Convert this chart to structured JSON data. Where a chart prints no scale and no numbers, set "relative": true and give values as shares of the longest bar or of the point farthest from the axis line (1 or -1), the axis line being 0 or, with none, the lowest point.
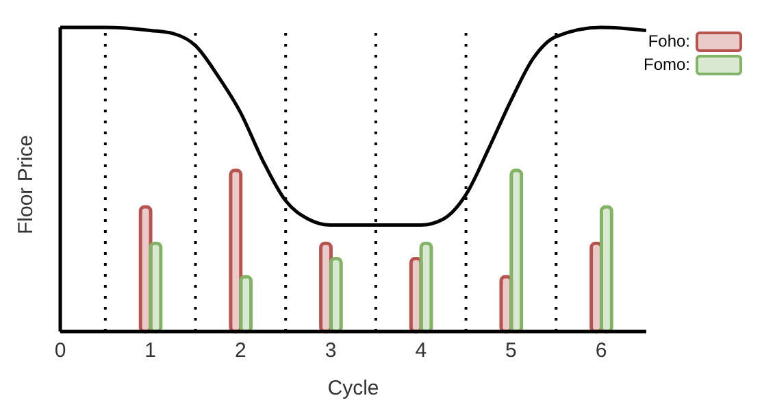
{
  "chart_data": {
    "type": "bar",
    "xlabel": "Cycle",
    "ylabel": "Floor Price",
    "relative": true,
    "xlim": [
      0,
      6.5
    ],
    "xticks": [
      0,
      1,
      2,
      3,
      4,
      5,
      6
    ],
    "legend": "top right",
    "series": [
      {
        "name": "Foho:",
        "color": "#b85450",
        "x": [
          1,
          2,
          3,
          4,
          5,
          6
        ],
        "values": [
          0.41,
          0.53,
          0.29,
          0.24,
          0.18,
          0.29
        ]
      },
      {
        "name": "Fomo:",
        "color": "#82b366",
        "x": [
          1,
          2,
          3,
          4,
          5,
          6
        ],
        "values": [
          0.29,
          0.18,
          0.24,
          0.29,
          0.53,
          0.41
        ]
      },
      {
        "type": "line",
        "color": "#000000",
        "x": [
          0,
          0.5,
          1,
          1.25,
          1.5,
          1.75,
          2,
          2.25,
          2.5,
          2.75,
          3,
          3.5,
          4,
          4.25,
          4.5,
          4.75,
          5,
          5.25,
          5.5,
          6,
          6.5
        ],
        "values": [
          1,
          1,
          0.99,
          0.98,
          0.94,
          0.84,
          0.72,
          0.56,
          0.43,
          0.37,
          0.35,
          0.35,
          0.35,
          0.37,
          0.45,
          0.6,
          0.76,
          0.9,
          0.97,
          1,
          0.99
        ]
      }
    ],
    "ref_lines": [
      {
        "axis": "x",
        "value": 0.5,
        "color": "#000000",
        "line_style": "dotted"
      },
      {
        "axis": "x",
        "value": 1.5,
        "color": "#000000",
        "line_style": "dotted"
      },
      {
        "axis": "x",
        "value": 2.5,
        "color": "#000000",
        "line_style": "dotted"
      },
      {
        "axis": "x",
        "value": 3.5,
        "color": "#000000",
        "line_style": "dotted"
      },
      {
        "axis": "x",
        "value": 4.5,
        "color": "#000000",
        "line_style": "dotted"
      },
      {
        "axis": "x",
        "value": 5.5,
        "color": "#000000",
        "line_style": "dotted"
      }
    ]
  }
}
